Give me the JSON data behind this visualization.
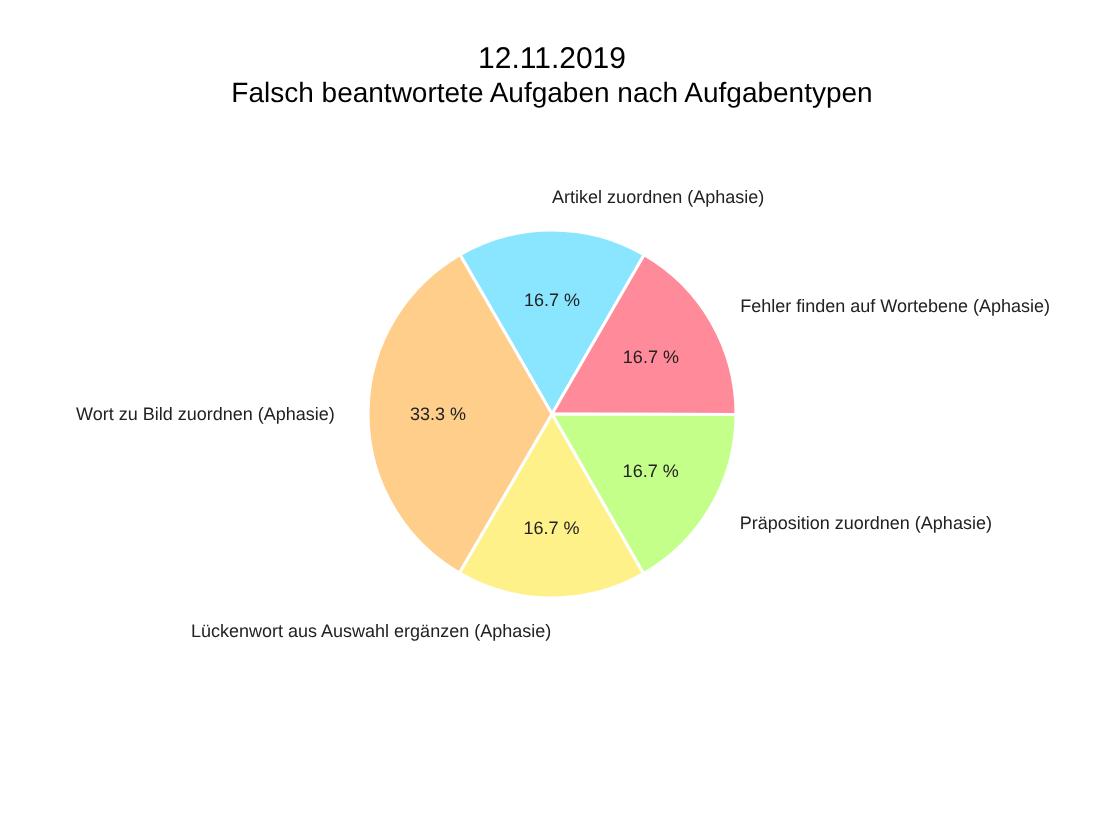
{
  "chart_data": {
    "type": "pie",
    "title": "12.11.2019",
    "subtitle": "Falsch beantwortete Aufgaben nach Aufgabentypen",
    "categories": [
      "Artikel zuordnen (Aphasie)",
      "Fehler finden auf Wortebene (Aphasie)",
      "Präposition zuordnen (Aphasie)",
      "Lückenwort aus Auswahl ergänzen (Aphasie)",
      "Wort zu Bild zuordnen (Aphasie)"
    ],
    "values": [
      16.7,
      16.7,
      16.7,
      16.7,
      33.3
    ],
    "colors": [
      "#8ae6ff",
      "#ff8a9a",
      "#c4ff8a",
      "#fff18a",
      "#ffce8a"
    ],
    "value_labels": [
      "16.7 %",
      "16.7 %",
      "16.7 %",
      "16.7 %",
      "33.3 %"
    ]
  }
}
